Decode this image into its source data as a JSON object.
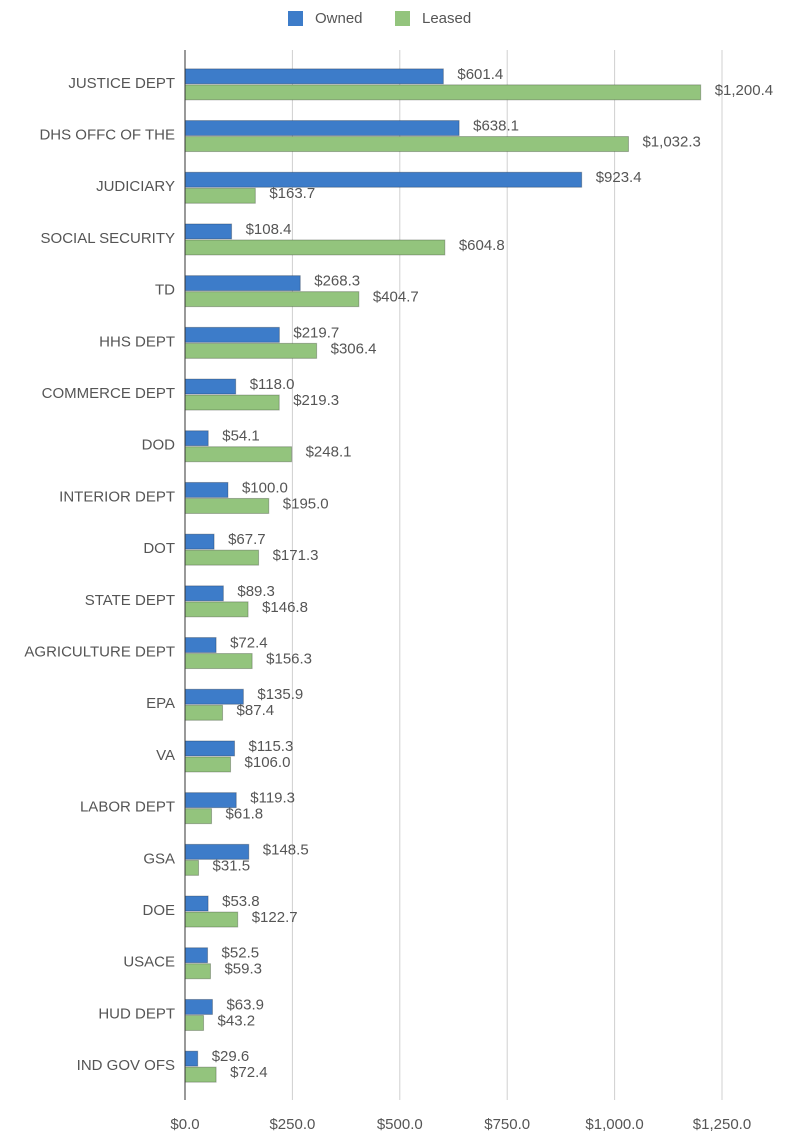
{
  "chart_data": {
    "type": "hbar",
    "categories": [
      "JUSTICE DEPT",
      "DHS OFFC OF THE",
      "JUDICIARY",
      "SOCIAL SECURITY",
      "TD",
      "HHS DEPT",
      "COMMERCE DEPT",
      "DOD",
      "INTERIOR DEPT",
      "DOT",
      "STATE DEPT",
      "AGRICULTURE DEPT",
      "EPA",
      "VA",
      "LABOR DEPT",
      "GSA",
      "DOE",
      "USACE",
      "HUD DEPT",
      "IND GOV OFS"
    ],
    "series": [
      {
        "name": "Owned",
        "color": "#3d7cc9",
        "label_color": "#3c78d8",
        "values": [
          601.4,
          638.1,
          923.4,
          108.4,
          268.3,
          219.7,
          118.0,
          54.1,
          100.0,
          67.7,
          89.3,
          72.4,
          135.9,
          115.3,
          119.3,
          148.5,
          53.8,
          52.5,
          63.9,
          29.6
        ],
        "value_labels": [
          "$601.4",
          "$638.1",
          "$923.4",
          "$108.4",
          "$268.3",
          "$219.7",
          "$118.0",
          "$54.1",
          "$100.0",
          "$67.7",
          "$89.3",
          "$72.4",
          "$135.9",
          "$115.3",
          "$119.3",
          "$148.5",
          "$53.8",
          "$52.5",
          "$63.9",
          "$29.6"
        ]
      },
      {
        "name": "Leased",
        "color": "#93c47d",
        "label_color": "#38761d",
        "values": [
          1200.4,
          1032.3,
          163.7,
          604.8,
          404.7,
          306.4,
          219.3,
          248.1,
          195.0,
          171.3,
          146.8,
          156.3,
          87.4,
          106.0,
          61.8,
          31.5,
          122.7,
          59.3,
          43.2,
          72.4
        ],
        "value_labels": [
          "$1,200.4",
          "$1,032.3",
          "$163.7",
          "$604.8",
          "$404.7",
          "$306.4",
          "$219.3",
          "$248.1",
          "$195.0",
          "$171.3",
          "$146.8",
          "$156.3",
          "$87.4",
          "$106.0",
          "$61.8",
          "$31.5",
          "$122.7",
          "$59.3",
          "$43.2",
          "$72.4"
        ]
      }
    ],
    "xlim": [
      0,
      1250
    ],
    "xticks": [
      {
        "value": 0,
        "label": "$0.0"
      },
      {
        "value": 250,
        "label": "$250.0"
      },
      {
        "value": 500,
        "label": "$500.0"
      },
      {
        "value": 750,
        "label": "$750.0"
      },
      {
        "value": 1000,
        "label": "$1,000.0"
      },
      {
        "value": 1250,
        "label": "$1,250.0"
      }
    ],
    "grid": true,
    "legend": "top"
  }
}
